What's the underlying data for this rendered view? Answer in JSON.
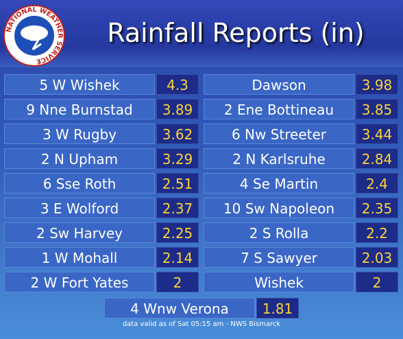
{
  "header": {
    "logo_text": "NATIONAL WEATHER SERVICE",
    "title": "Rainfall Reports (in)"
  },
  "reports": [
    {
      "location": "5 W Wishek",
      "value": 4.3
    },
    {
      "location": "Dawson",
      "value": 3.98
    },
    {
      "location": "9 Nne Burnstad",
      "value": 3.89
    },
    {
      "location": "2 Ene Bottineau",
      "value": 3.85
    },
    {
      "location": "3 W Rugby",
      "value": 3.62
    },
    {
      "location": "6 Nw Streeter",
      "value": 3.44
    },
    {
      "location": "2 N Upham",
      "value": 3.29
    },
    {
      "location": "2 N Karlsruhe",
      "value": 2.84
    },
    {
      "location": "6 Sse Roth",
      "value": 2.51
    },
    {
      "location": "4 Se Martin",
      "value": 2.4
    },
    {
      "location": "3 E Wolford",
      "value": 2.37
    },
    {
      "location": "10 Sw Napoleon",
      "value": 2.35
    },
    {
      "location": "2 Sw Harvey",
      "value": 2.25
    },
    {
      "location": "2 S Rolla",
      "value": 2.2
    },
    {
      "location": "1 W Mohall",
      "value": 2.14
    },
    {
      "location": "7 S Sawyer",
      "value": 2.03
    },
    {
      "location": "2 W Fort Yates",
      "value": 2
    },
    {
      "location": "Wishek",
      "value": 2
    },
    {
      "location": "4 Wnw Verona",
      "value": 1.81
    }
  ],
  "footer": "data valid as of Sat 05:15 am - NWS Bismarck"
}
